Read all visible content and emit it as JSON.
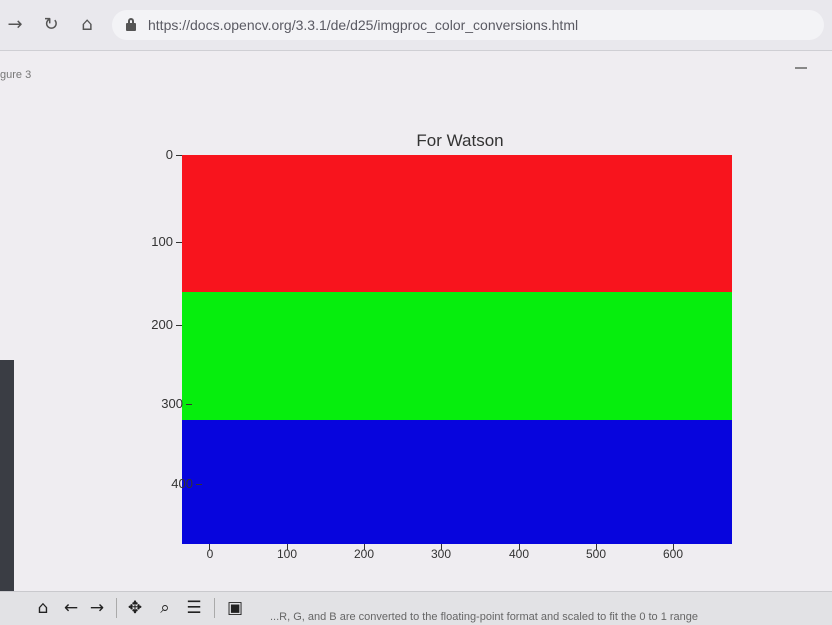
{
  "browser": {
    "back_icon": "arrow-left-icon",
    "reload_icon": "reload-icon",
    "home_icon": "home-icon",
    "url": "https://docs.opencv.org/3.3.1/de/d25/imgproc_color_conversions.html"
  },
  "figure": {
    "window_title": "gure 3",
    "title": "For Watson"
  },
  "chart_data": {
    "type": "heatmap",
    "title": "For Watson",
    "xlabel": "",
    "ylabel": "",
    "xlim": [
      0,
      640
    ],
    "ylim": [
      480,
      0
    ],
    "x_ticks": [
      "0",
      "100",
      "200",
      "300",
      "400",
      "500",
      "600"
    ],
    "y_ticks": [
      "0",
      "100",
      "200",
      "300",
      "400"
    ],
    "bands": [
      {
        "color": "#f8141d",
        "row_start": 0,
        "row_end": 160
      },
      {
        "color": "#06ee0d",
        "row_start": 160,
        "row_end": 320
      },
      {
        "color": "#0705dd",
        "row_start": 320,
        "row_end": 480
      }
    ]
  },
  "toolbar": {
    "home_icon": "home-icon",
    "back_icon": "back-arrow-icon",
    "forward_icon": "forward-arrow-icon",
    "pan_icon": "pan-icon",
    "zoom_icon": "zoom-icon",
    "configure_icon": "configure-subplots-icon",
    "save_icon": "save-icon",
    "status": "...R, G, and B are converted to the floating-point format and scaled to fit the 0 to 1 range"
  }
}
